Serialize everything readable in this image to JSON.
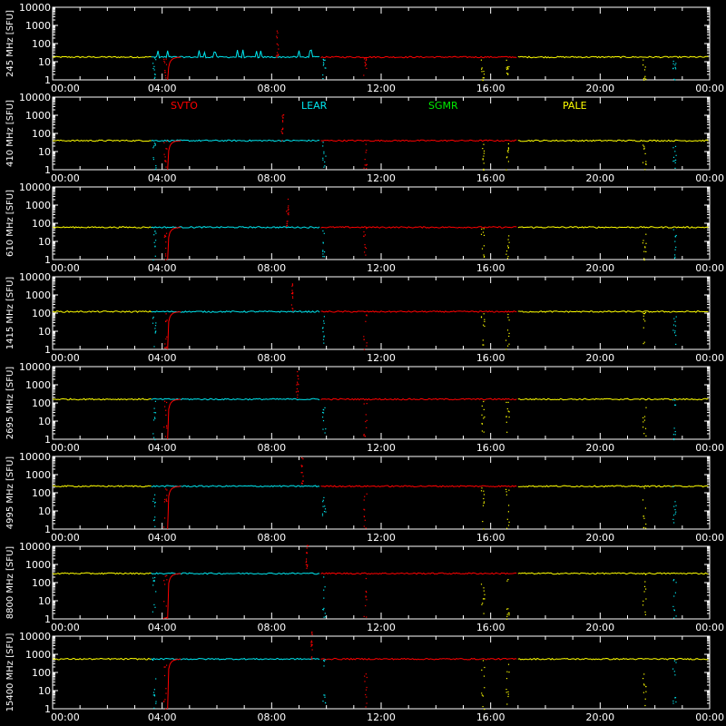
{
  "chart_data": {
    "type": "line",
    "x_ticks": [
      "00:00",
      "04:00",
      "08:00",
      "12:00",
      "16:00",
      "20:00",
      "00:00"
    ],
    "x_range_hours": [
      0,
      24
    ],
    "y_scale": "log",
    "y_range": [
      1,
      10000
    ],
    "y_ticks": [
      "1",
      "10",
      "100",
      "1000",
      "10000"
    ],
    "grid": false,
    "legend": {
      "placement": "top",
      "panel": 1
    },
    "series": [
      {
        "name": "SVTO",
        "color": "#ff0000"
      },
      {
        "name": "LEAR",
        "color": "#00e5ee"
      },
      {
        "name": "SGMR",
        "color": "#00ee00"
      },
      {
        "name": "PALE",
        "color": "#ffff00"
      }
    ],
    "panels": [
      {
        "ylabel": "245 MHz [SFU]",
        "baseline": 18
      },
      {
        "ylabel": "410 MHz [SFU]",
        "baseline": 40
      },
      {
        "ylabel": "610 MHz [SFU]",
        "baseline": 60
      },
      {
        "ylabel": "1415 MHz [SFU]",
        "baseline": 120
      },
      {
        "ylabel": "2695 MHz [SFU]",
        "baseline": 160
      },
      {
        "ylabel": "4995 MHz [SFU]",
        "baseline": 230
      },
      {
        "ylabel": "8800 MHz [SFU]",
        "baseline": 320
      },
      {
        "ylabel": "15400 MHz [SFU]",
        "baseline": 550
      }
    ]
  }
}
